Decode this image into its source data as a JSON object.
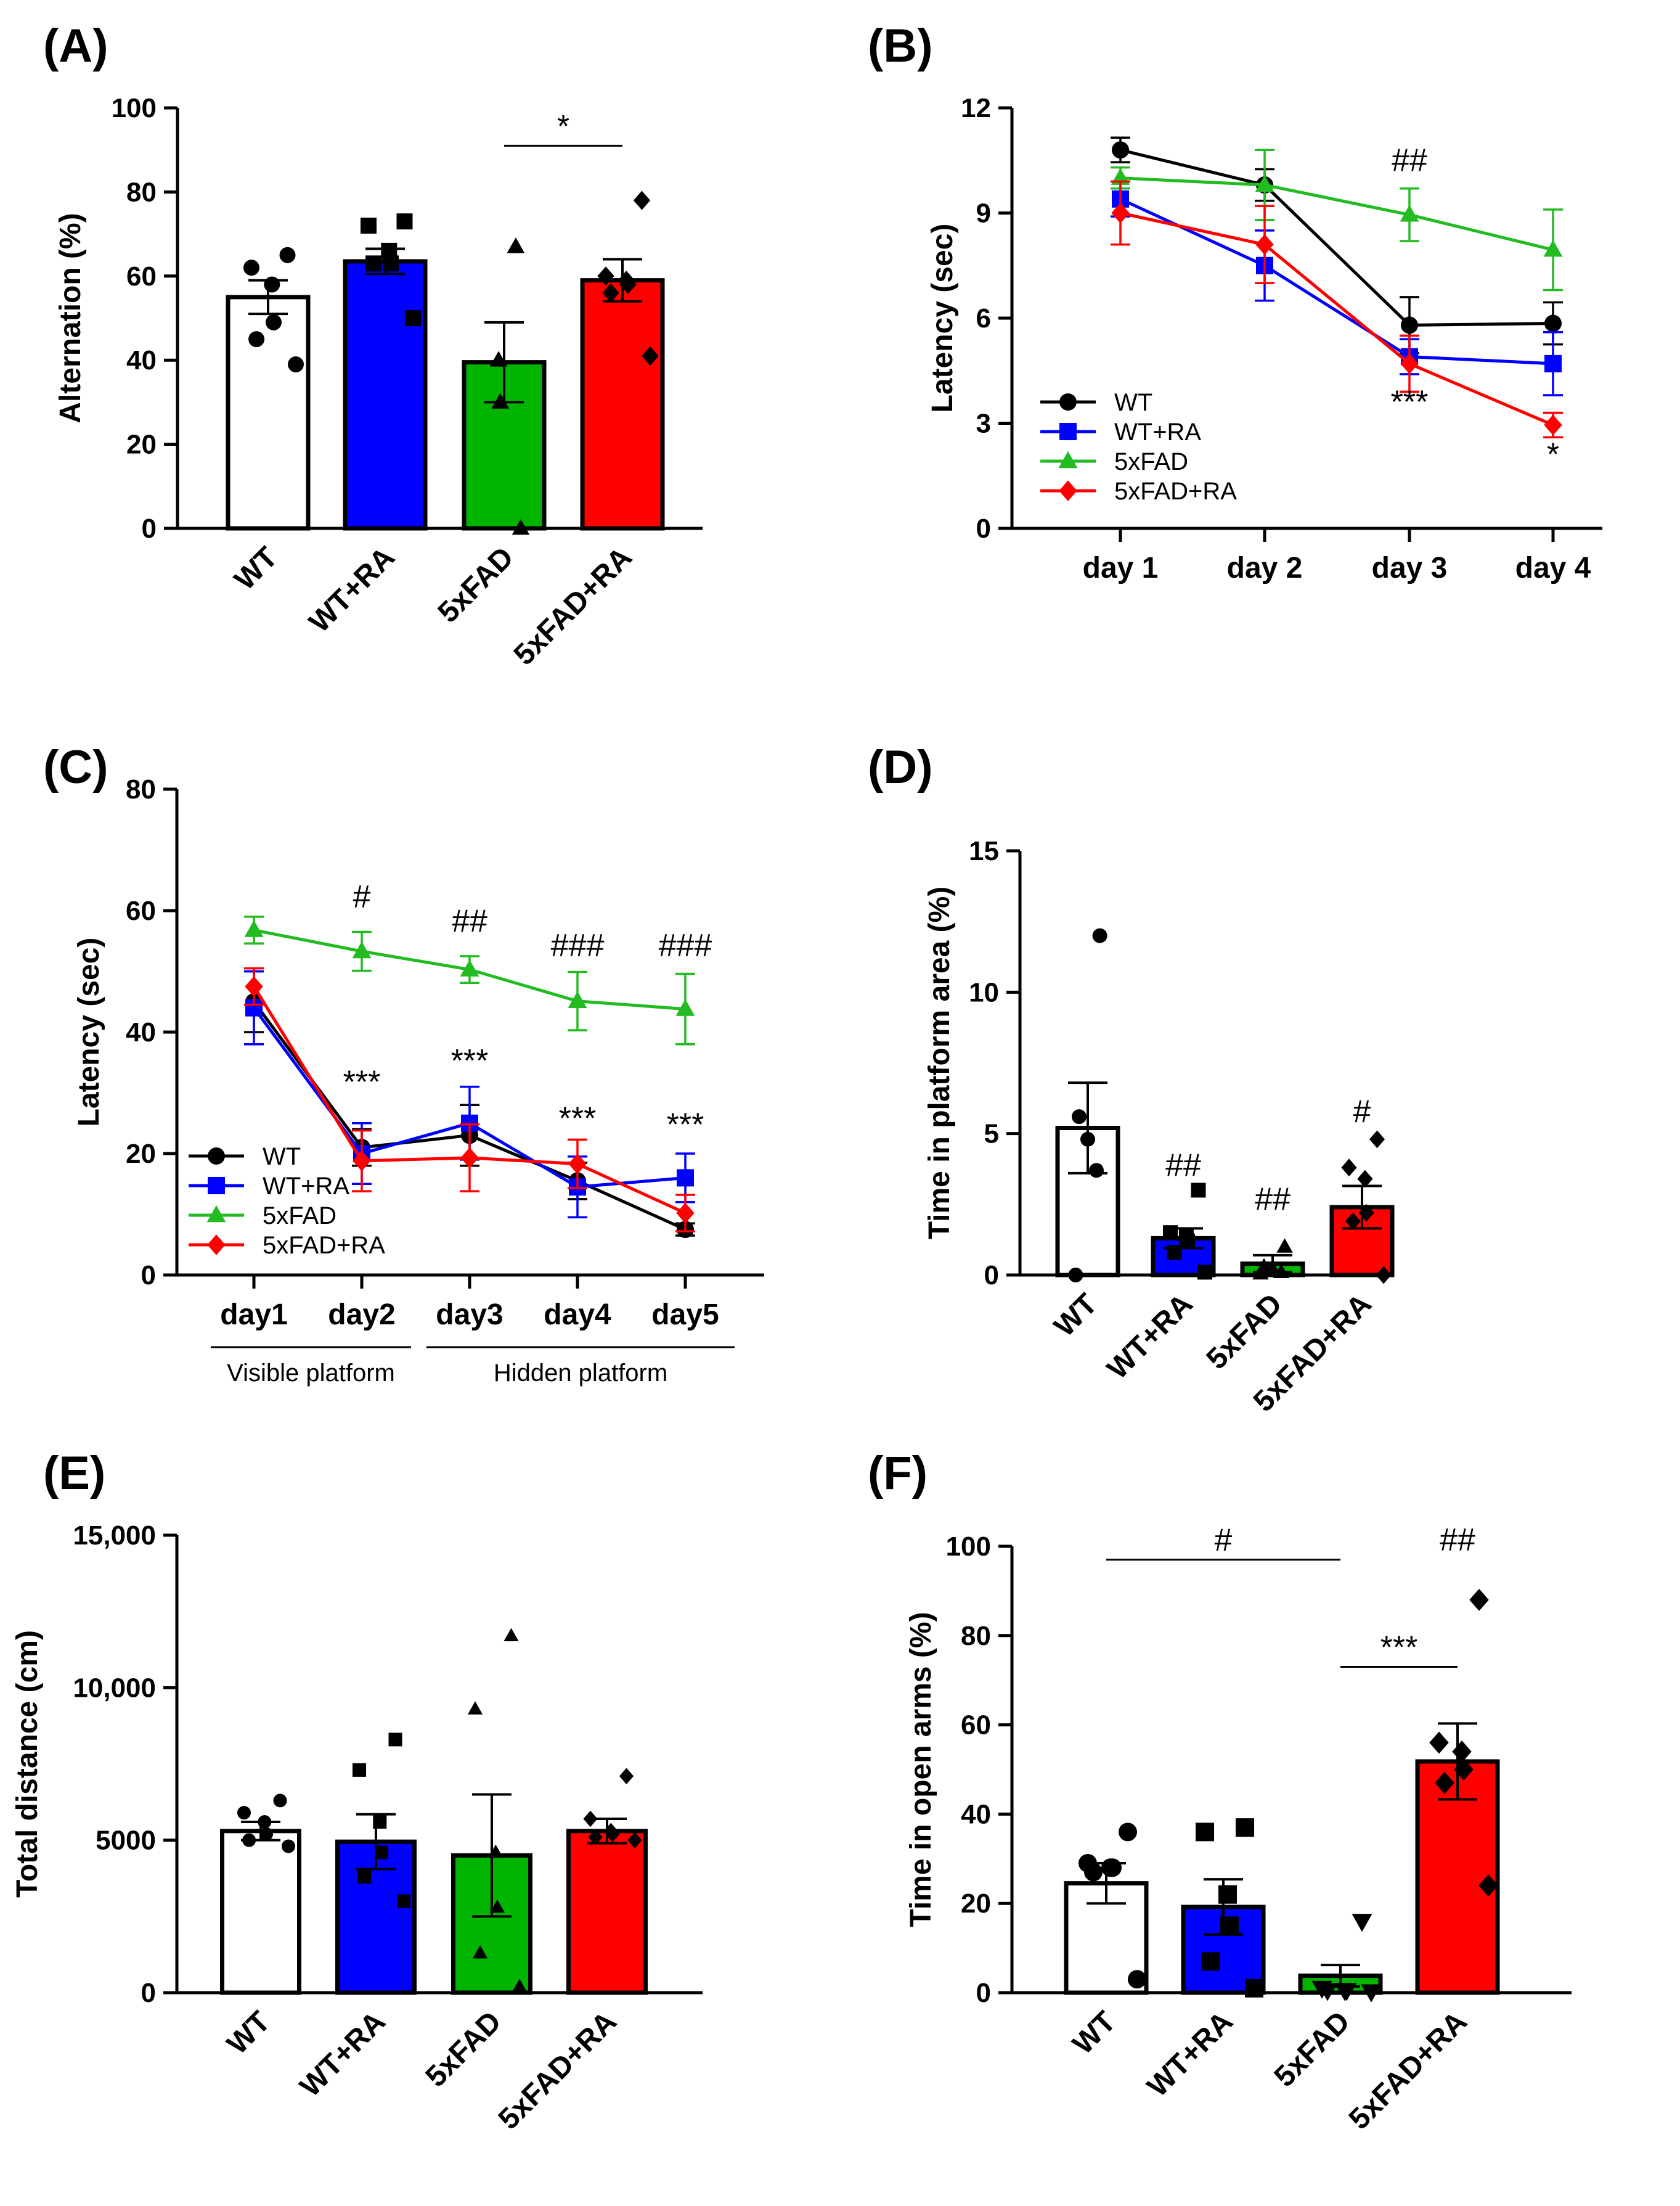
{
  "colors": {
    "WT": "#ffffff",
    "WT+RA": "#0000ff",
    "5xFAD": "#00b400",
    "5xFAD+RA": "#ff0000",
    "WT_line": "#000000",
    "5xFAD_line": "#22bb22"
  },
  "chart_data": [
    {
      "panel": "(A)",
      "type": "bar",
      "ylabel": "Alternation (%)",
      "ylim": [
        0,
        100
      ],
      "yticks": [
        "0",
        "20",
        "40",
        "60",
        "80",
        "100"
      ],
      "categories": [
        "WT",
        "WT+RA",
        "5xFAD",
        "5xFAD+RA"
      ],
      "values": [
        55,
        63.5,
        39.5,
        59
      ],
      "sem": [
        4,
        3,
        9.5,
        5
      ],
      "points": [
        [
          65,
          62,
          58,
          49,
          45,
          39
        ],
        [
          73,
          72,
          66,
          63,
          63,
          50
        ],
        [
          67,
          40,
          30,
          0
        ],
        [
          78,
          60,
          59,
          58,
          56,
          41
        ]
      ],
      "significance": [
        {
          "label": "*",
          "from": 2,
          "to": 3,
          "y": 91
        }
      ]
    },
    {
      "panel": "(B)",
      "type": "line",
      "ylabel": "Latency (sec)",
      "ylim": [
        0,
        12
      ],
      "yticks": [
        "0",
        "3",
        "6",
        "9",
        "12"
      ],
      "categories": [
        "day 1",
        "day 2",
        "day 3",
        "day 4"
      ],
      "legend": [
        "WT",
        "WT+RA",
        "5xFAD",
        "5xFAD+RA"
      ],
      "series": [
        {
          "name": "WT",
          "values": [
            10.8,
            9.8,
            5.8,
            5.85
          ],
          "sem": [
            0.35,
            0.45,
            0.8,
            0.6
          ]
        },
        {
          "name": "WT+RA",
          "values": [
            9.4,
            7.5,
            4.9,
            4.7
          ],
          "sem": [
            0.5,
            1.0,
            0.5,
            0.9
          ]
        },
        {
          "name": "5xFAD",
          "values": [
            10.0,
            9.8,
            8.95,
            7.95
          ],
          "sem": [
            0.3,
            1.0,
            0.75,
            1.15
          ]
        },
        {
          "name": "5xFAD+RA",
          "values": [
            9.0,
            8.1,
            4.7,
            2.95
          ],
          "sem": [
            0.9,
            1.1,
            0.8,
            0.35
          ]
        }
      ],
      "annotations": [
        {
          "label": "##",
          "day": 2,
          "y": 10.2
        },
        {
          "label": "***",
          "day": 2,
          "y": 3.3
        },
        {
          "label": "*",
          "day": 3,
          "y": 1.8
        }
      ]
    },
    {
      "panel": "(C)",
      "type": "line",
      "ylabel": "Latency (sec)",
      "ylim": [
        0,
        80
      ],
      "yticks": [
        "0",
        "20",
        "40",
        "60",
        "80"
      ],
      "categories": [
        "day1",
        "day2",
        "day3",
        "day4",
        "day5"
      ],
      "legend": [
        "WT",
        "WT+RA",
        "5xFAD",
        "5xFAD+RA"
      ],
      "series": [
        {
          "name": "WT",
          "values": [
            45,
            21,
            23,
            15.5,
            7.5
          ],
          "sem": [
            5,
            3,
            5,
            3,
            1
          ]
        },
        {
          "name": "WT+RA",
          "values": [
            44,
            20,
            25,
            14.5,
            16
          ],
          "sem": [
            6,
            5,
            6,
            5,
            4
          ]
        },
        {
          "name": "5xFAD",
          "values": [
            56.8,
            53.3,
            50.3,
            45.1,
            43.8
          ],
          "sem": [
            2.2,
            3.2,
            2.2,
            4.8,
            5.8
          ]
        },
        {
          "name": "5xFAD+RA",
          "values": [
            47.5,
            18.8,
            19.3,
            18.3,
            10.2
          ],
          "sem": [
            3,
            5,
            5.5,
            4,
            3
          ]
        }
      ],
      "annotations": [
        {
          "label": "#",
          "day": 1,
          "y": 60.5
        },
        {
          "label": "##",
          "day": 2,
          "y": 56.5
        },
        {
          "label": "###",
          "day": 3,
          "y": 52.5
        },
        {
          "label": "###",
          "day": 4,
          "y": 52.5
        },
        {
          "label": "***",
          "day": 1,
          "y": 30
        },
        {
          "label": "***",
          "day": 2,
          "y": 33.5
        },
        {
          "label": "***",
          "day": 3,
          "y": 24
        },
        {
          "label": "***",
          "day": 4,
          "y": 23
        }
      ],
      "groups": [
        {
          "label": "Visible platform",
          "from": 0,
          "to": 1
        },
        {
          "label": "Hidden platform",
          "from": 2,
          "to": 4
        }
      ]
    },
    {
      "panel": "(D)",
      "type": "bar",
      "ylabel": "Time in platform area (%)",
      "ylim": [
        0,
        15
      ],
      "yticks": [
        "0",
        "5",
        "10",
        "15"
      ],
      "categories": [
        "WT",
        "WT+RA",
        "5xFAD",
        "5xFAD+RA"
      ],
      "values": [
        5.2,
        1.3,
        0.4,
        2.4
      ],
      "sem": [
        1.6,
        0.35,
        0.3,
        0.75
      ],
      "points": [
        [
          12,
          5.6,
          4.8,
          3.7,
          0
        ],
        [
          3,
          1.5,
          1.4,
          1.2,
          0.8,
          0.1
        ],
        [
          1.0,
          0.3,
          0.2,
          0.1,
          0.05
        ],
        [
          4.8,
          3.8,
          3.4,
          2.2,
          1.9,
          0
        ]
      ],
      "annotations": [
        {
          "label": "##",
          "bar": 1,
          "y": 3.5
        },
        {
          "label": "##",
          "bar": 2,
          "y": 2.3
        },
        {
          "label": "#",
          "bar": 3,
          "y": 5.4
        }
      ]
    },
    {
      "panel": "(E)",
      "type": "bar",
      "ylabel": "Total distance (cm)",
      "ylim": [
        0,
        15000
      ],
      "yticks": [
        "0",
        "5000",
        "10,000",
        "15,000"
      ],
      "categories": [
        "WT",
        "WT+RA",
        "5xFAD",
        "5xFAD+RA"
      ],
      "values": [
        5300,
        4950,
        4500,
        5300
      ],
      "sem": [
        300,
        900,
        2000,
        400
      ],
      "points": [
        [
          6300,
          5900,
          5600,
          5200,
          5000,
          4800
        ],
        [
          8300,
          7300,
          5600,
          4600,
          3800,
          3000
        ],
        [
          11700,
          9300,
          4600,
          2800,
          1300,
          200
        ],
        [
          7100,
          5700,
          5300,
          5200,
          5100,
          5000
        ]
      ]
    },
    {
      "panel": "(F)",
      "type": "bar",
      "ylabel": "Time in open arms (%)",
      "ylim": [
        0,
        100
      ],
      "yticks": [
        "0",
        "20",
        "40",
        "60",
        "80",
        "100"
      ],
      "categories": [
        "WT",
        "WT+RA",
        "5xFAD",
        "5xFAD+RA"
      ],
      "values": [
        24.5,
        19.2,
        3.8,
        51.8
      ],
      "sem": [
        4.5,
        6.2,
        2.4,
        8.5
      ],
      "points": [
        [
          36,
          29,
          28,
          28,
          27,
          3
        ],
        [
          37,
          36,
          22,
          15,
          7,
          1
        ],
        [
          16,
          1,
          0.5,
          0.5,
          0.5,
          0.2
        ],
        [
          88,
          56,
          54,
          50,
          47,
          24
        ]
      ],
      "significance": [
        {
          "label": "#",
          "from": 0,
          "to": 2,
          "y": 97
        },
        {
          "label": "***",
          "from": 2,
          "to": 3,
          "y": 73
        }
      ],
      "annotations": [
        {
          "label": "##",
          "bar": 3,
          "y": 99
        }
      ]
    }
  ]
}
